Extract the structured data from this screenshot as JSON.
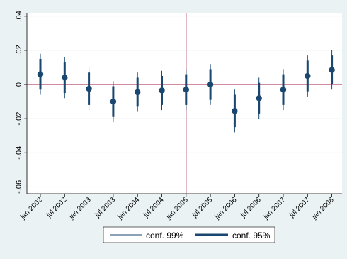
{
  "chart_data": {
    "type": "scatter",
    "subtype": "coefficient-plot-with-confidence-intervals",
    "categories": [
      "jan 2002",
      "jul 2002",
      "jan 2003",
      "jul 2003",
      "jan 2004",
      "jul 2004",
      "jan 2005",
      "jul 2005",
      "jan 2006",
      "jul 2006",
      "jan 2007",
      "jul 2007",
      "jan 2008"
    ],
    "estimates": [
      0.006,
      0.004,
      -0.0025,
      -0.01,
      -0.0045,
      -0.0035,
      -0.003,
      0.0,
      -0.0155,
      -0.008,
      -0.003,
      0.005,
      0.0085
    ],
    "ci95_low": [
      -0.003,
      -0.005,
      -0.012,
      -0.019,
      -0.013,
      -0.012,
      -0.012,
      -0.009,
      -0.025,
      -0.017,
      -0.012,
      -0.004,
      -0.0
    ],
    "ci95_high": [
      0.015,
      0.013,
      0.007,
      -0.001,
      0.004,
      0.005,
      0.006,
      0.009,
      -0.006,
      0.001,
      0.006,
      0.014,
      0.017
    ],
    "ci99_low": [
      -0.006,
      -0.008,
      -0.015,
      -0.022,
      -0.016,
      -0.015,
      -0.015,
      -0.012,
      -0.028,
      -0.02,
      -0.015,
      -0.007,
      -0.003
    ],
    "ci99_high": [
      0.018,
      0.016,
      0.01,
      0.002,
      0.007,
      0.008,
      0.009,
      0.012,
      -0.003,
      0.004,
      0.009,
      0.017,
      0.02
    ],
    "ylim": [
      -0.064,
      0.042
    ],
    "yticks": [
      0.04,
      0.02,
      0,
      -0.02,
      -0.04,
      -0.06
    ],
    "ytick_labels": [
      ".04",
      ".02",
      "0",
      "-.02",
      "-.04",
      "-.06"
    ],
    "reference_hline": 0,
    "reference_vline_category": "jan 2005",
    "reference_color": "#a0173f",
    "series_color": "#1a476f",
    "title": "",
    "xlabel": "",
    "ylabel": "",
    "grid": "horizontal",
    "legend_position": "bottom",
    "legend": [
      {
        "label": "conf. 99%",
        "style": "thin-line"
      },
      {
        "label": "conf. 95%",
        "style": "thick-line"
      }
    ]
  }
}
